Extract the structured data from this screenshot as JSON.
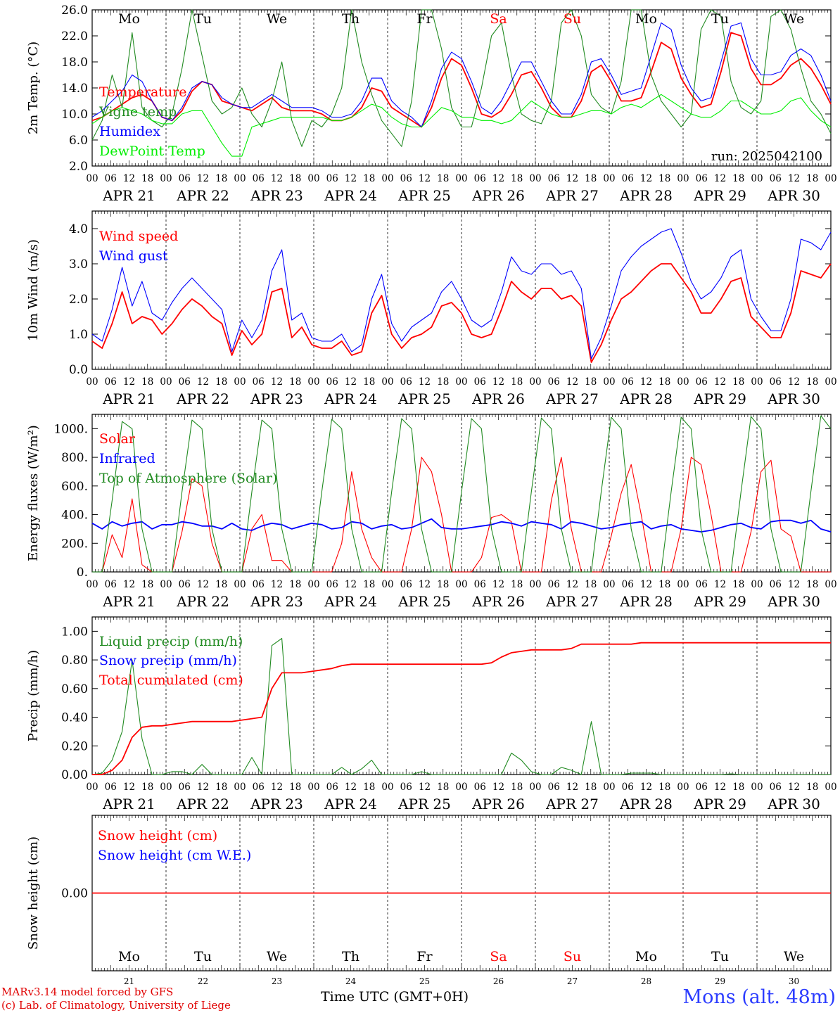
{
  "chart_data": [
    {
      "type": "line",
      "ylabel": "2m Temp. (°C)",
      "ylim": [
        2,
        26
      ],
      "yticks": [
        "2.0",
        "6.0",
        "10.0",
        "14.0",
        "18.0",
        "22.0",
        "26.0"
      ],
      "annotation": "run: 2025042100",
      "weekdays": [
        {
          "label": "Mo",
          "color": "#000000"
        },
        {
          "label": "Tu",
          "color": "#000000"
        },
        {
          "label": "We",
          "color": "#000000"
        },
        {
          "label": "Th",
          "color": "#000000"
        },
        {
          "label": "Fr",
          "color": "#000000"
        },
        {
          "label": "Sa",
          "color": "#ff0000"
        },
        {
          "label": "Su",
          "color": "#ff0000"
        },
        {
          "label": "Mo",
          "color": "#000000"
        },
        {
          "label": "Tu",
          "color": "#000000"
        },
        {
          "label": "We",
          "color": "#000000"
        }
      ],
      "series": [
        {
          "name": "Temperature",
          "color": "#ff0000",
          "values": [
            9,
            9.5,
            10.5,
            11.5,
            12.5,
            13,
            12,
            9.5,
            9,
            10.5,
            13.5,
            15,
            14.5,
            12,
            11.5,
            11,
            10.5,
            11.5,
            12.5,
            11,
            10.5,
            10.5,
            10.5,
            10,
            9,
            9,
            9.5,
            11,
            14,
            13.5,
            11,
            10,
            9,
            8,
            11,
            15.5,
            18.5,
            17.5,
            14,
            10,
            9.5,
            10.5,
            13,
            16,
            16.5,
            14,
            11,
            9.5,
            9.5,
            12,
            16.5,
            17.5,
            15,
            12,
            12,
            12.5,
            16.5,
            21,
            20,
            15.5,
            13,
            11,
            11.5,
            16.5,
            22.5,
            22,
            17,
            14.5,
            14.5,
            15.5,
            17.5,
            18.5,
            17,
            14.5,
            11.5
          ]
        },
        {
          "name": "Vigne temp",
          "color": "#228b22",
          "values": [
            6,
            9,
            16,
            11,
            22.5,
            11,
            9,
            8,
            10,
            17,
            26,
            19,
            12,
            10,
            11,
            14,
            10,
            8,
            12,
            18,
            9,
            5,
            9,
            8,
            10,
            14,
            26,
            18,
            13,
            9,
            7,
            5,
            12,
            26,
            27,
            20,
            11,
            8,
            8,
            14,
            22,
            24,
            16,
            10,
            9,
            8.5,
            12,
            24,
            27,
            22,
            13,
            11,
            10,
            15,
            26,
            27,
            16,
            12,
            10,
            8,
            10,
            23,
            27,
            25,
            15,
            11,
            10,
            12,
            25,
            27,
            23,
            17,
            12,
            10,
            7
          ]
        },
        {
          "name": "Humidex",
          "color": "#0000ff",
          "values": [
            9.5,
            10.5,
            12,
            13.5,
            16,
            15,
            12,
            9.5,
            9,
            11,
            14,
            15,
            14.5,
            12.5,
            11.5,
            11,
            11,
            12,
            13,
            12,
            11,
            11,
            11,
            10.5,
            9.5,
            9.5,
            10,
            12,
            15.5,
            15.5,
            12,
            10.5,
            9.5,
            8,
            12,
            17,
            19.5,
            18.5,
            15,
            11,
            10,
            12,
            15,
            18,
            18,
            15,
            12,
            10,
            10,
            13,
            18,
            18.5,
            16,
            13,
            13.5,
            14,
            19,
            24,
            23,
            17.5,
            14,
            12,
            12.5,
            18,
            23.5,
            24,
            18.5,
            16,
            16,
            16.5,
            19,
            20,
            19,
            16,
            12
          ]
        },
        {
          "name": "DewPoint Temp",
          "color": "#00ee00",
          "values": [
            8.5,
            9.5,
            10.5,
            11,
            10.5,
            10,
            9,
            8.5,
            8.5,
            10,
            10.5,
            10.5,
            8,
            5.5,
            3.5,
            3.5,
            8,
            8.5,
            9,
            9.5,
            9.5,
            9.5,
            9.5,
            9.5,
            9,
            9,
            9.5,
            10.5,
            11.5,
            11,
            9.5,
            8.5,
            8,
            8,
            9.5,
            11,
            10.5,
            9.5,
            9.5,
            9,
            9,
            8.5,
            9,
            10.5,
            12,
            11,
            10,
            9.5,
            9.5,
            10,
            10.5,
            10.5,
            10,
            11,
            11.5,
            11,
            12,
            13,
            12,
            11,
            10,
            9.5,
            9.5,
            10.5,
            12,
            12,
            11,
            10,
            10,
            10.5,
            12,
            12.5,
            10.5,
            9,
            8
          ]
        }
      ]
    },
    {
      "type": "line",
      "ylabel": "10m Wind (m/s)",
      "ylim": [
        0,
        4.5
      ],
      "yticks": [
        "0.0",
        "1.0",
        "2.0",
        "3.0",
        "4.0"
      ],
      "series": [
        {
          "name": "Wind speed",
          "color": "#ff0000",
          "values": [
            0.8,
            0.6,
            1.3,
            2.2,
            1.3,
            1.5,
            1.4,
            1.0,
            1.3,
            1.7,
            2.0,
            1.8,
            1.5,
            1.3,
            0.4,
            1.1,
            0.7,
            1.0,
            2.2,
            2.3,
            0.9,
            1.2,
            0.7,
            0.6,
            0.6,
            0.8,
            0.4,
            0.5,
            1.6,
            2.1,
            1.0,
            0.6,
            0.9,
            1.0,
            1.2,
            1.8,
            1.9,
            1.6,
            1.0,
            0.9,
            1.0,
            1.7,
            2.5,
            2.2,
            2.0,
            2.3,
            2.3,
            2.0,
            2.1,
            1.8,
            0.2,
            0.7,
            1.4,
            2.0,
            2.2,
            2.5,
            2.8,
            3.0,
            3.0,
            2.6,
            2.2,
            1.6,
            1.6,
            2.0,
            2.5,
            2.6,
            1.5,
            1.2,
            0.9,
            0.9,
            1.6,
            2.8,
            2.7,
            2.6,
            3.0
          ]
        },
        {
          "name": "Wind gust",
          "color": "#0000ff",
          "values": [
            1.0,
            0.8,
            1.7,
            2.9,
            1.8,
            2.5,
            1.6,
            1.4,
            1.9,
            2.3,
            2.6,
            2.3,
            2.0,
            1.7,
            0.5,
            1.4,
            0.9,
            1.4,
            2.8,
            3.4,
            1.4,
            1.6,
            0.9,
            0.8,
            0.8,
            1.0,
            0.5,
            0.7,
            2.0,
            2.7,
            1.3,
            0.8,
            1.2,
            1.4,
            1.6,
            2.2,
            2.5,
            2.0,
            1.4,
            1.2,
            1.4,
            2.2,
            3.2,
            2.8,
            2.7,
            3.0,
            3.0,
            2.7,
            2.8,
            2.3,
            0.3,
            0.9,
            1.8,
            2.8,
            3.2,
            3.5,
            3.7,
            3.9,
            4.0,
            3.3,
            2.5,
            2.0,
            2.2,
            2.6,
            3.2,
            3.4,
            2.0,
            1.5,
            1.1,
            1.1,
            2.0,
            3.7,
            3.6,
            3.4,
            3.9
          ]
        }
      ]
    },
    {
      "type": "line",
      "ylabel": "Energy fluxes (W/m²)",
      "ylim": [
        0,
        1100
      ],
      "yticks": [
        "0.",
        "200.",
        "400.",
        "600.",
        "800.",
        "1000."
      ],
      "series": [
        {
          "name": "Solar",
          "color": "#ff0000",
          "values": [
            0,
            0,
            260,
            100,
            510,
            50,
            0,
            0,
            0,
            280,
            650,
            600,
            200,
            0,
            0,
            0,
            300,
            400,
            80,
            80,
            0,
            0,
            0,
            0,
            0,
            200,
            700,
            300,
            100,
            0,
            0,
            0,
            300,
            800,
            700,
            400,
            0,
            0,
            0,
            100,
            380,
            400,
            350,
            0,
            0,
            0,
            500,
            800,
            300,
            0,
            0,
            0,
            250,
            550,
            750,
            400,
            0,
            0,
            0,
            300,
            800,
            750,
            400,
            0,
            0,
            0,
            280,
            700,
            780,
            300,
            250,
            0,
            0,
            0,
            0
          ]
        },
        {
          "name": "Infrared",
          "color": "#0000ff",
          "values": [
            340,
            300,
            350,
            320,
            340,
            350,
            300,
            330,
            330,
            350,
            340,
            320,
            320,
            300,
            340,
            300,
            290,
            320,
            340,
            330,
            300,
            320,
            340,
            330,
            300,
            310,
            350,
            340,
            300,
            320,
            330,
            300,
            310,
            340,
            370,
            310,
            300,
            300,
            310,
            320,
            330,
            350,
            340,
            320,
            350,
            340,
            330,
            300,
            350,
            340,
            320,
            300,
            310,
            330,
            340,
            350,
            300,
            320,
            330,
            300,
            290,
            280,
            290,
            310,
            330,
            340,
            310,
            300,
            350,
            360,
            360,
            340,
            360,
            300,
            280
          ]
        },
        {
          "name": "Top of Atmosphere (Solar)",
          "color": "#228b22",
          "values": [
            0,
            0,
            500,
            1050,
            1000,
            300,
            0,
            0,
            0,
            560,
            1060,
            1000,
            300,
            0,
            0,
            0,
            560,
            1060,
            1000,
            300,
            0,
            0,
            0,
            560,
            1065,
            1000,
            300,
            0,
            0,
            0,
            560,
            1070,
            1000,
            300,
            0,
            0,
            0,
            560,
            1070,
            1000,
            300,
            0,
            0,
            0,
            560,
            1075,
            1000,
            300,
            0,
            0,
            0,
            560,
            1080,
            1000,
            300,
            0,
            0,
            0,
            560,
            1080,
            1000,
            300,
            0,
            0,
            0,
            560,
            1085,
            1000,
            300,
            0,
            0,
            0,
            560,
            1090,
            1000
          ]
        }
      ]
    },
    {
      "type": "line",
      "ylabel": "Precip (mm/h)",
      "ylim": [
        0,
        1.1
      ],
      "yticks": [
        "0.00",
        "0.20",
        "0.40",
        "0.60",
        "0.80",
        "1.00"
      ],
      "series": [
        {
          "name": "Liquid precip (mm/h)",
          "color": "#228b22",
          "values": [
            0,
            0.01,
            0.1,
            0.3,
            0.8,
            0.25,
            0,
            0,
            0.02,
            0.02,
            0,
            0.07,
            0,
            0,
            0,
            0,
            0.12,
            0,
            0.9,
            0.95,
            0,
            0,
            0,
            0,
            0,
            0.05,
            0,
            0.04,
            0.1,
            0,
            0,
            0,
            0,
            0.02,
            0,
            0,
            0,
            0,
            0,
            0,
            0,
            0,
            0.15,
            0.1,
            0.02,
            0,
            0,
            0.05,
            0.03,
            0,
            0.37,
            0,
            0,
            0,
            0.01,
            0.01,
            0.01,
            0,
            0,
            0,
            0,
            0,
            0,
            0,
            0.005,
            0,
            0,
            0,
            0,
            0,
            0,
            0,
            0,
            0,
            0
          ]
        },
        {
          "name": "Snow precip (mm/h)",
          "color": "#0000ff",
          "values": []
        },
        {
          "name": "Total cumulated (cm)",
          "color": "#ff0000",
          "values": [
            0,
            0,
            0.03,
            0.1,
            0.26,
            0.33,
            0.34,
            0.34,
            0.35,
            0.36,
            0.37,
            0.37,
            0.37,
            0.37,
            0.37,
            0.38,
            0.39,
            0.4,
            0.6,
            0.71,
            0.71,
            0.71,
            0.72,
            0.73,
            0.74,
            0.76,
            0.77,
            0.77,
            0.77,
            0.77,
            0.77,
            0.77,
            0.77,
            0.77,
            0.77,
            0.77,
            0.77,
            0.77,
            0.77,
            0.77,
            0.78,
            0.82,
            0.85,
            0.86,
            0.87,
            0.87,
            0.87,
            0.87,
            0.88,
            0.91,
            0.91,
            0.91,
            0.91,
            0.91,
            0.91,
            0.92,
            0.92,
            0.92,
            0.92,
            0.92,
            0.92,
            0.92,
            0.92,
            0.92,
            0.92,
            0.92,
            0.92,
            0.92,
            0.92,
            0.92,
            0.92,
            0.92,
            0.92,
            0.92,
            0.92
          ]
        }
      ]
    },
    {
      "type": "line",
      "ylabel": "Snow height (cm)",
      "ylim": [
        -1,
        1
      ],
      "yticks": [
        "0.00"
      ],
      "series": [
        {
          "name": "Snow height (cm)",
          "color": "#ff0000",
          "values": [
            0,
            0
          ]
        },
        {
          "name": "Snow height (cm W.E.)",
          "color": "#0000ff",
          "values": []
        }
      ]
    }
  ],
  "time_axis": {
    "hour_ticks": [
      "00",
      "06",
      "12",
      "18"
    ],
    "final_tick": "00",
    "dates": [
      "APR 21",
      "APR 22",
      "APR 23",
      "APR 24",
      "APR 25",
      "APR 26",
      "APR 27",
      "APR 28",
      "APR 29",
      "APR 30"
    ],
    "day_numbers": [
      "21",
      "22",
      "23",
      "24",
      "25",
      "26",
      "27",
      "28",
      "29",
      "30"
    ],
    "title": "Time UTC (GMT+0H)"
  },
  "footer": {
    "credit_line1": "MARv3.14 model forced by GFS",
    "credit_line2": "(c) Lab. of Climatology, University of Liege",
    "station": "Mons (alt. 48m)"
  },
  "colors": {
    "weekend": "#ff0000",
    "station": "#2b3cff",
    "grid": "#000000"
  }
}
